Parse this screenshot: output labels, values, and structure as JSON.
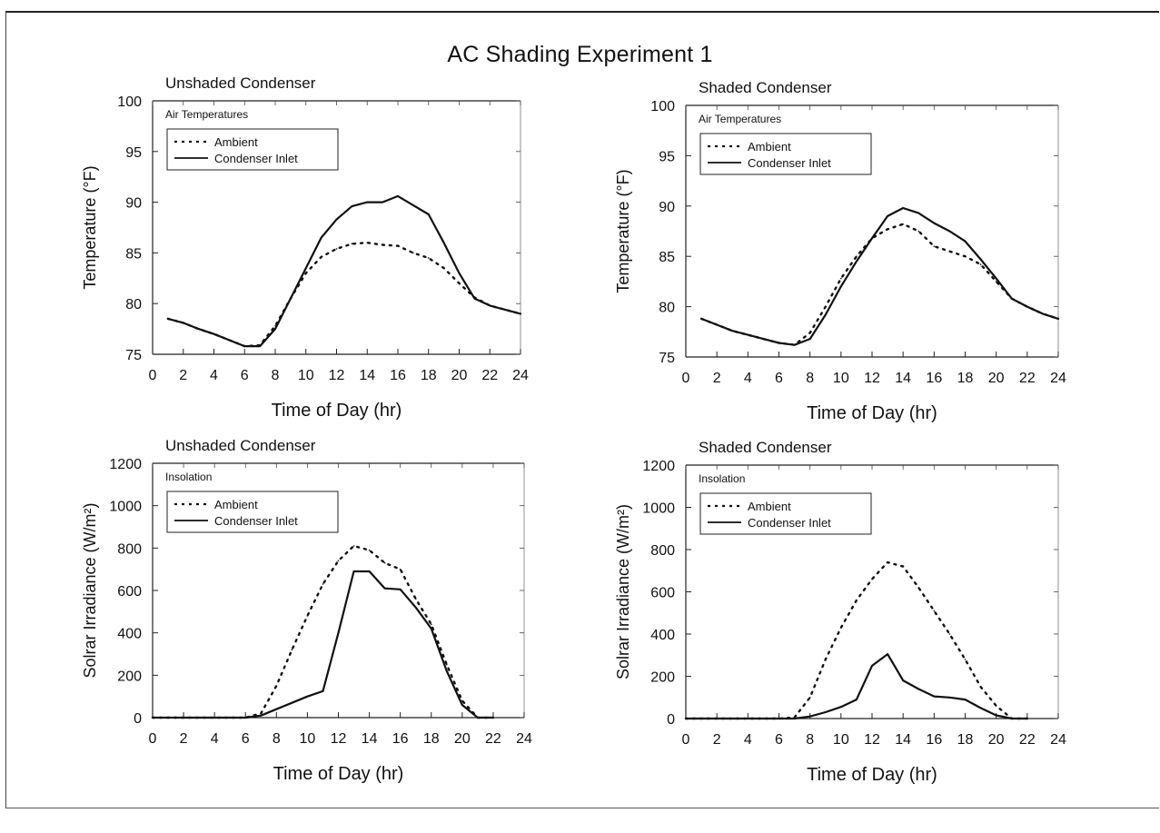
{
  "figure": {
    "title": "AC Shading Experiment 1"
  },
  "chart_data": [
    {
      "type": "line",
      "title": "Unshaded Condenser",
      "panel_label": "Air Temperatures",
      "xlabel": "Time of Day (hr)",
      "ylabel": "Temperature (°F)",
      "xlim": [
        0,
        24
      ],
      "ylim": [
        75,
        100
      ],
      "xticks": [
        "0",
        "2",
        "4",
        "6",
        "8",
        "10",
        "12",
        "14",
        "16",
        "18",
        "20",
        "22",
        "24"
      ],
      "yticks": [
        "75",
        "80",
        "85",
        "90",
        "95",
        "100"
      ],
      "legend_position": "top-left",
      "series": [
        {
          "name": "Ambient",
          "style": "dotted",
          "x": [
            1,
            2,
            3,
            4,
            5,
            6,
            7,
            8,
            9,
            10,
            11,
            12,
            13,
            14,
            15,
            16,
            17,
            18,
            19,
            20,
            21,
            22,
            23,
            24
          ],
          "values": [
            78.5,
            78.1,
            77.5,
            77.0,
            76.4,
            75.8,
            75.9,
            77.8,
            80.5,
            83.0,
            84.6,
            85.4,
            85.9,
            86.0,
            85.8,
            85.7,
            85.0,
            84.5,
            83.5,
            82.0,
            80.6,
            79.8,
            79.4,
            79.0
          ]
        },
        {
          "name": "Condenser Inlet",
          "style": "solid",
          "x": [
            1,
            2,
            3,
            4,
            5,
            6,
            7,
            8,
            9,
            10,
            11,
            12,
            13,
            14,
            15,
            16,
            17,
            18,
            19,
            20,
            21,
            22,
            23,
            24
          ],
          "values": [
            78.5,
            78.1,
            77.5,
            77.0,
            76.4,
            75.8,
            75.8,
            77.5,
            80.5,
            83.5,
            86.5,
            88.3,
            89.6,
            90.0,
            90.0,
            90.6,
            89.7,
            88.8,
            86.0,
            83.0,
            80.5,
            79.8,
            79.4,
            79.0
          ]
        }
      ]
    },
    {
      "type": "line",
      "title": "Shaded Condenser",
      "panel_label": "Air Temperatures",
      "xlabel": "Time of Day (hr)",
      "ylabel": "Temperature (°F)",
      "xlim": [
        0,
        24
      ],
      "ylim": [
        75,
        100
      ],
      "xticks": [
        "0",
        "2",
        "4",
        "6",
        "8",
        "10",
        "12",
        "14",
        "16",
        "18",
        "20",
        "22",
        "24"
      ],
      "yticks": [
        "75",
        "80",
        "85",
        "90",
        "95",
        "100"
      ],
      "legend_position": "top-left",
      "series": [
        {
          "name": "Ambient",
          "style": "dotted",
          "x": [
            1,
            2,
            3,
            4,
            5,
            6,
            7,
            8,
            9,
            10,
            11,
            12,
            13,
            14,
            15,
            16,
            17,
            18,
            19,
            20,
            21,
            22,
            23,
            24
          ],
          "values": [
            78.8,
            78.2,
            77.6,
            77.2,
            76.8,
            76.4,
            76.2,
            77.4,
            80.0,
            82.8,
            85.0,
            86.8,
            87.7,
            88.2,
            87.5,
            86.0,
            85.5,
            85.0,
            84.2,
            82.5,
            80.8,
            80.0,
            79.3,
            78.8
          ]
        },
        {
          "name": "Condenser Inlet",
          "style": "solid",
          "x": [
            1,
            2,
            3,
            4,
            5,
            6,
            7,
            8,
            9,
            10,
            11,
            12,
            13,
            14,
            15,
            16,
            17,
            18,
            19,
            20,
            21,
            22,
            23,
            24
          ],
          "values": [
            78.8,
            78.2,
            77.6,
            77.2,
            76.8,
            76.4,
            76.2,
            76.8,
            79.2,
            82.0,
            84.5,
            86.8,
            89.0,
            89.8,
            89.3,
            88.3,
            87.5,
            86.5,
            84.7,
            82.8,
            80.8,
            80.0,
            79.3,
            78.8
          ]
        }
      ]
    },
    {
      "type": "line",
      "title": "Unshaded Condenser",
      "panel_label": "Insolation",
      "xlabel": "Time of Day (hr)",
      "ylabel": "Solrar Irradiance (W/m²)",
      "xlim": [
        0,
        24
      ],
      "ylim": [
        0,
        1200
      ],
      "xticks": [
        "0",
        "2",
        "4",
        "6",
        "8",
        "10",
        "12",
        "14",
        "16",
        "18",
        "20",
        "22",
        "24"
      ],
      "yticks": [
        "0",
        "200",
        "400",
        "600",
        "800",
        "1000",
        "1200"
      ],
      "legend_position": "top-left",
      "series": [
        {
          "name": "Ambient",
          "style": "dotted",
          "x": [
            0,
            6,
            7,
            8,
            9,
            10,
            11,
            12,
            13,
            14,
            15,
            16,
            17,
            18,
            19,
            20,
            21,
            22
          ],
          "values": [
            0,
            0,
            20,
            150,
            320,
            480,
            630,
            740,
            810,
            790,
            730,
            700,
            560,
            440,
            250,
            80,
            0,
            0
          ]
        },
        {
          "name": "Condenser Inlet",
          "style": "solid",
          "x": [
            0,
            6,
            7,
            8,
            9,
            10,
            11,
            12,
            13,
            14,
            15,
            16,
            17,
            18,
            19,
            20,
            21,
            22
          ],
          "values": [
            0,
            0,
            10,
            40,
            70,
            100,
            125,
            400,
            690,
            690,
            610,
            605,
            520,
            420,
            220,
            60,
            0,
            0
          ]
        }
      ]
    },
    {
      "type": "line",
      "title": "Shaded Condenser",
      "panel_label": "Insolation",
      "xlabel": "Time of Day (hr)",
      "ylabel": "Solrar Irradiance (W/m²)",
      "xlim": [
        0,
        24
      ],
      "ylim": [
        0,
        1200
      ],
      "xticks": [
        "0",
        "2",
        "4",
        "6",
        "8",
        "10",
        "12",
        "14",
        "16",
        "18",
        "20",
        "22",
        "24"
      ],
      "yticks": [
        "0",
        "200",
        "400",
        "600",
        "800",
        "1000",
        "1200"
      ],
      "legend_position": "top-left",
      "series": [
        {
          "name": "Ambient",
          "style": "dotted",
          "x": [
            0,
            6,
            7,
            8,
            9,
            10,
            11,
            12,
            13,
            14,
            15,
            16,
            17,
            18,
            19,
            20,
            21,
            22
          ],
          "values": [
            0,
            0,
            5,
            100,
            280,
            430,
            560,
            660,
            740,
            720,
            620,
            510,
            400,
            280,
            150,
            60,
            0,
            0
          ]
        },
        {
          "name": "Condenser Inlet",
          "style": "solid",
          "x": [
            0,
            6,
            7,
            8,
            9,
            10,
            11,
            12,
            13,
            14,
            15,
            16,
            17,
            18,
            19,
            20,
            21,
            22
          ],
          "values": [
            0,
            0,
            0,
            10,
            30,
            55,
            90,
            250,
            305,
            180,
            140,
            105,
            100,
            90,
            50,
            15,
            0,
            0
          ]
        }
      ]
    }
  ]
}
